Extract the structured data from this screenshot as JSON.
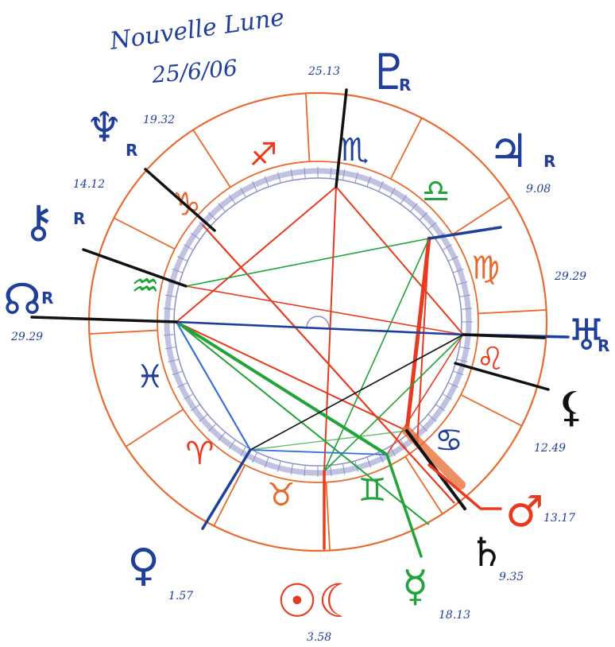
{
  "title": {
    "line1": "Nouvelle Lune",
    "line2": "25/6/06"
  },
  "colors": {
    "ink_blue": "#1f3f9a",
    "wheel_orange": "#e86a2e",
    "inner_ring": "#8b8fc9",
    "aspect_red": "#e83a1e",
    "aspect_green": "#22a33a",
    "aspect_blue": "#3a6fd8",
    "ink_black": "#111111"
  },
  "signs": [
    {
      "name": "capricorn",
      "glyph": "♑",
      "color": "#e86a2e"
    },
    {
      "name": "aquarius",
      "glyph": "♒",
      "color": "#22a33a"
    },
    {
      "name": "pisces",
      "glyph": "♓",
      "color": "#1f3f9a"
    },
    {
      "name": "aries",
      "glyph": "♈",
      "color": "#e83a1e"
    },
    {
      "name": "taurus",
      "glyph": "♉",
      "color": "#e86a2e"
    },
    {
      "name": "gemini",
      "glyph": "♊",
      "color": "#22a33a"
    },
    {
      "name": "cancer",
      "glyph": "♋",
      "color": "#1f3f9a"
    },
    {
      "name": "leo",
      "glyph": "♌",
      "color": "#e83a1e"
    },
    {
      "name": "virgo",
      "glyph": "♍",
      "color": "#e86a2e"
    },
    {
      "name": "libra",
      "glyph": "♎",
      "color": "#22a33a"
    },
    {
      "name": "scorpio",
      "glyph": "♏",
      "color": "#1f3f9a"
    },
    {
      "name": "sagittarius",
      "glyph": "♐",
      "color": "#e83a1e"
    }
  ],
  "planets": [
    {
      "name": "mars",
      "glyph": "♂",
      "degree": "13.17",
      "retro": "",
      "color": "#e83a1e"
    },
    {
      "name": "saturn",
      "glyph": "♄",
      "degree": "9.35",
      "retro": "",
      "color": "#111111"
    },
    {
      "name": "mercury",
      "glyph": "☿",
      "degree": "18.13",
      "retro": "",
      "color": "#22a33a"
    },
    {
      "name": "sun-moon",
      "glyph": "☉☾",
      "degree": "3.58",
      "retro": "",
      "color": "#e83a1e"
    },
    {
      "name": "venus",
      "glyph": "♀",
      "degree": "1.57",
      "retro": "",
      "color": "#1f3f9a"
    },
    {
      "name": "north-node",
      "glyph": "☊",
      "degree": "29.29",
      "retro": "R",
      "color": "#1f3f9a"
    },
    {
      "name": "chiron",
      "glyph": "⚷",
      "degree": "14.12",
      "retro": "R",
      "color": "#1f3f9a"
    },
    {
      "name": "neptune",
      "glyph": "♆",
      "degree": "19.32",
      "retro": "R",
      "color": "#1f3f9a"
    },
    {
      "name": "pluto",
      "glyph": "♇",
      "degree": "25.13",
      "retro": "R",
      "color": "#1f3f9a"
    },
    {
      "name": "jupiter",
      "glyph": "♃",
      "degree": "9.08",
      "retro": "R",
      "color": "#1f3f9a"
    },
    {
      "name": "uranus",
      "glyph": "♅",
      "degree": "29.29",
      "retro": "R",
      "color": "#1f3f9a"
    },
    {
      "name": "black-moon",
      "glyph": "⚸",
      "degree": "12.49",
      "retro": "",
      "color": "#111111"
    }
  ]
}
